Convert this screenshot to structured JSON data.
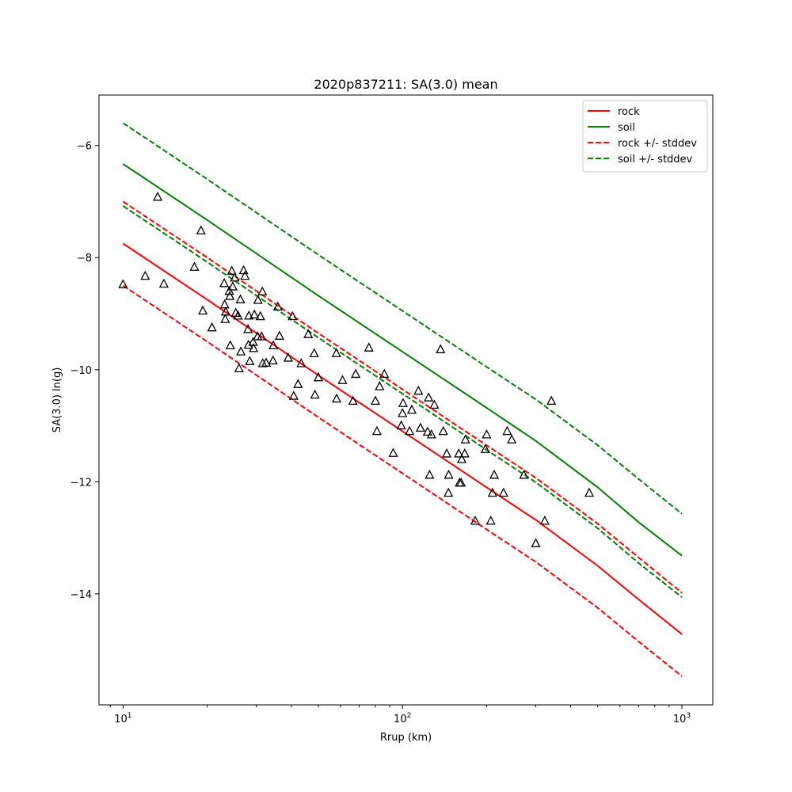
{
  "chart_data": {
    "type": "line",
    "title": "2020p837211: SA(3.0) mean",
    "xlabel": "Rrup (km)",
    "ylabel": "SA(3.0) ln(g)",
    "xscale": "log",
    "xlim": [
      8.2,
      1290
    ],
    "ylim": [
      -15.98,
      -5.1
    ],
    "x_ticks": [
      {
        "value": 10,
        "base": "10",
        "exp": "1"
      },
      {
        "value": 100,
        "base": "10",
        "exp": "2"
      },
      {
        "value": 1000,
        "base": "10",
        "exp": "3"
      }
    ],
    "y_ticks": [
      {
        "value": -6,
        "label": "−6"
      },
      {
        "value": -8,
        "label": "−8"
      },
      {
        "value": -10,
        "label": "−10"
      },
      {
        "value": -12,
        "label": "−12"
      },
      {
        "value": -14,
        "label": "−14"
      }
    ],
    "legend_position": "top-right",
    "series": [
      {
        "name": "rock",
        "color": "#ff0000",
        "style": "solid",
        "x": [
          10,
          20,
          50,
          100,
          200,
          300,
          500,
          700,
          1000
        ],
        "y": [
          -7.75,
          -8.75,
          -10.1,
          -11.1,
          -12.1,
          -12.68,
          -13.5,
          -14.1,
          -14.72
        ]
      },
      {
        "name": "soil",
        "color": "#008000",
        "style": "solid",
        "x": [
          10,
          20,
          50,
          100,
          200,
          300,
          500,
          700,
          1000
        ],
        "y": [
          -6.33,
          -7.33,
          -8.68,
          -9.68,
          -10.68,
          -11.27,
          -12.1,
          -12.72,
          -13.32
        ]
      },
      {
        "name": "rock +/- stddev",
        "color": "#ff0000",
        "style": "dashed",
        "x": [
          10,
          20,
          50,
          100,
          200,
          300,
          500,
          700,
          1000
        ],
        "y": [
          -7.0,
          -8.0,
          -9.35,
          -10.35,
          -11.35,
          -11.93,
          -12.75,
          -13.35,
          -13.98
        ]
      },
      {
        "name": "",
        "color": "#ff0000",
        "style": "dashed",
        "x": [
          10,
          20,
          50,
          100,
          200,
          300,
          500,
          700,
          1000
        ],
        "y": [
          -8.5,
          -9.5,
          -10.85,
          -11.85,
          -12.85,
          -13.43,
          -14.25,
          -14.85,
          -15.47
        ]
      },
      {
        "name": "soil +/- stddev",
        "color": "#008000",
        "style": "dashed",
        "x": [
          10,
          20,
          50,
          100,
          200,
          300,
          500,
          700,
          1000
        ],
        "y": [
          -5.6,
          -6.6,
          -7.95,
          -8.95,
          -9.95,
          -10.53,
          -11.35,
          -11.95,
          -12.57
        ]
      },
      {
        "name": "",
        "color": "#008000",
        "style": "dashed",
        "x": [
          10,
          20,
          50,
          100,
          200,
          300,
          500,
          700,
          1000
        ],
        "y": [
          -7.08,
          -8.08,
          -9.43,
          -10.43,
          -11.43,
          -12.01,
          -12.83,
          -13.45,
          -14.06
        ]
      }
    ],
    "observations": {
      "marker": "triangle",
      "color": "#000000",
      "points": [
        [
          10,
          -8.48
        ],
        [
          12,
          -8.33
        ],
        [
          13.3,
          -6.92
        ],
        [
          14,
          -8.47
        ],
        [
          18,
          -8.17
        ],
        [
          19,
          -7.52
        ],
        [
          19.3,
          -8.95
        ],
        [
          20.8,
          -9.25
        ],
        [
          23,
          -8.46
        ],
        [
          23.1,
          -8.84
        ],
        [
          23.2,
          -9.1
        ],
        [
          23.3,
          -8.97
        ],
        [
          24,
          -8.6
        ],
        [
          24.1,
          -8.69
        ],
        [
          24.2,
          -9.57
        ],
        [
          24.5,
          -8.24
        ],
        [
          24.7,
          -8.52
        ],
        [
          25.1,
          -8.36
        ],
        [
          25.3,
          -8.99
        ],
        [
          25.8,
          -9.04
        ],
        [
          26,
          -9.98
        ],
        [
          26.3,
          -8.75
        ],
        [
          26.4,
          -9.68
        ],
        [
          27,
          -8.23
        ],
        [
          27.3,
          -8.33
        ],
        [
          28,
          -9.28
        ],
        [
          28.1,
          -9.56
        ],
        [
          28.2,
          -9.04
        ],
        [
          28.4,
          -9.85
        ],
        [
          29.2,
          -9.51
        ],
        [
          29.3,
          -9.62
        ],
        [
          29.5,
          -9.02
        ],
        [
          30.3,
          -9.41
        ],
        [
          30.4,
          -8.76
        ],
        [
          31,
          -9.05
        ],
        [
          31.3,
          -9.41
        ],
        [
          31.5,
          -8.61
        ],
        [
          31.6,
          -9.89
        ],
        [
          32.5,
          -9.88
        ],
        [
          34.4,
          -9.84
        ],
        [
          34.5,
          -9.57
        ],
        [
          35.8,
          -8.88
        ],
        [
          36.3,
          -9.4
        ],
        [
          39,
          -9.79
        ],
        [
          40.4,
          -9.05
        ],
        [
          40.8,
          -10.47
        ],
        [
          42.3,
          -10.26
        ],
        [
          43.4,
          -9.89
        ],
        [
          46,
          -9.37
        ],
        [
          48.3,
          -9.71
        ],
        [
          48.6,
          -10.45
        ],
        [
          50,
          -10.14
        ],
        [
          58,
          -9.71
        ],
        [
          58.1,
          -10.52
        ],
        [
          61,
          -10.19
        ],
        [
          66.5,
          -10.56
        ],
        [
          68,
          -10.08
        ],
        [
          75.8,
          -9.61
        ],
        [
          80,
          -10.56
        ],
        [
          81,
          -11.1
        ],
        [
          82.8,
          -10.3
        ],
        [
          86.1,
          -10.08
        ],
        [
          92.7,
          -11.49
        ],
        [
          99,
          -11.0
        ],
        [
          100,
          -10.78
        ],
        [
          100.5,
          -10.6
        ],
        [
          106,
          -11.1
        ],
        [
          108,
          -10.72
        ],
        [
          114,
          -10.38
        ],
        [
          116,
          -11.04
        ],
        [
          123,
          -11.11
        ],
        [
          124,
          -10.5
        ],
        [
          125,
          -11.88
        ],
        [
          127,
          -11.16
        ],
        [
          130,
          -10.63
        ],
        [
          136.8,
          -9.64
        ],
        [
          140,
          -11.1
        ],
        [
          144,
          -11.5
        ],
        [
          146,
          -12.2
        ],
        [
          146.3,
          -11.88
        ],
        [
          159,
          -11.5
        ],
        [
          160,
          -12.02
        ],
        [
          162,
          -12.02
        ],
        [
          163,
          -11.6
        ],
        [
          168,
          -11.25
        ],
        [
          167,
          -11.5
        ],
        [
          182,
          -12.7
        ],
        [
          198,
          -11.42
        ],
        [
          200,
          -11.16
        ],
        [
          207,
          -12.7
        ],
        [
          210,
          -12.2
        ],
        [
          213,
          -11.88
        ],
        [
          230,
          -12.2
        ],
        [
          237,
          -11.1
        ],
        [
          246,
          -11.25
        ],
        [
          272,
          -11.88
        ],
        [
          300,
          -13.1
        ],
        [
          323,
          -12.7
        ],
        [
          341,
          -10.56
        ],
        [
          466,
          -12.2
        ]
      ]
    }
  }
}
